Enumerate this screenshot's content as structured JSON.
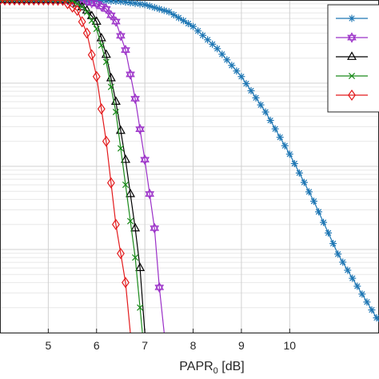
{
  "chart_data": {
    "type": "line",
    "title": "",
    "xlabel": "PAPR",
    "xlabel_sub": "0",
    "xlabel_unit": " [dB]",
    "ylabel": "",
    "xlim": [
      4.0,
      11.85
    ],
    "ylim_log10": [
      -4,
      0
    ],
    "y_scale": "log",
    "grid": true,
    "legend_position": "top-right",
    "x_ticks": [
      5,
      6,
      7,
      8,
      9,
      10
    ],
    "x_tick_labels": [
      "5",
      "6",
      "7",
      "8",
      "9",
      "10"
    ],
    "series": [
      {
        "color": "#1f77b4",
        "marker": "asterisk",
        "points": [
          [
            4.0,
            1.0
          ],
          [
            5.0,
            1.0
          ],
          [
            5.5,
            0.999
          ],
          [
            6.0,
            0.99
          ],
          [
            6.5,
            0.96
          ],
          [
            7.0,
            0.88
          ],
          [
            7.5,
            0.72
          ],
          [
            8.0,
            0.48
          ],
          [
            8.5,
            0.26
          ],
          [
            9.0,
            0.12
          ],
          [
            9.5,
            0.045
          ],
          [
            10.0,
            0.014
          ],
          [
            10.5,
            0.0038
          ],
          [
            11.0,
            0.00088
          ],
          [
            11.3,
            0.00045
          ],
          [
            11.85,
            0.000135
          ]
        ]
      },
      {
        "color": "#9b30c8",
        "marker": "hexagram",
        "points": [
          [
            4.0,
            1.0
          ],
          [
            5.0,
            1.0
          ],
          [
            5.6,
            0.99
          ],
          [
            6.0,
            0.9
          ],
          [
            6.2,
            0.78
          ],
          [
            6.4,
            0.55
          ],
          [
            6.6,
            0.25
          ],
          [
            6.8,
            0.065
          ],
          [
            7.0,
            0.012
          ],
          [
            7.2,
            0.0018
          ],
          [
            7.3,
            0.00035
          ],
          [
            7.4,
            0.0001
          ]
        ]
      },
      {
        "color": "#000000",
        "marker": "triangle",
        "points": [
          [
            4.0,
            1.0
          ],
          [
            5.0,
            1.0
          ],
          [
            5.5,
            0.99
          ],
          [
            5.8,
            0.75
          ],
          [
            6.0,
            0.55
          ],
          [
            6.2,
            0.22
          ],
          [
            6.4,
            0.06
          ],
          [
            6.6,
            0.012
          ],
          [
            6.8,
            0.0018
          ],
          [
            6.9,
            0.0006
          ],
          [
            7.0,
            0.0001
          ]
        ]
      },
      {
        "color": "#1a8a1a",
        "marker": "x",
        "points": [
          [
            4.0,
            1.0
          ],
          [
            5.0,
            1.0
          ],
          [
            5.5,
            0.98
          ],
          [
            5.75,
            0.8
          ],
          [
            6.0,
            0.45
          ],
          [
            6.2,
            0.18
          ],
          [
            6.4,
            0.045
          ],
          [
            6.6,
            0.006
          ],
          [
            6.8,
            0.0008
          ],
          [
            6.95,
            0.0001
          ]
        ]
      },
      {
        "color": "#e31a1c",
        "marker": "diamond",
        "points": [
          [
            4.0,
            1.0
          ],
          [
            5.0,
            1.0
          ],
          [
            5.3,
            0.99
          ],
          [
            5.6,
            0.75
          ],
          [
            5.8,
            0.4
          ],
          [
            6.0,
            0.12
          ],
          [
            6.2,
            0.02
          ],
          [
            6.4,
            0.002
          ],
          [
            6.6,
            0.0004
          ],
          [
            6.7,
            0.0001
          ]
        ]
      }
    ]
  }
}
